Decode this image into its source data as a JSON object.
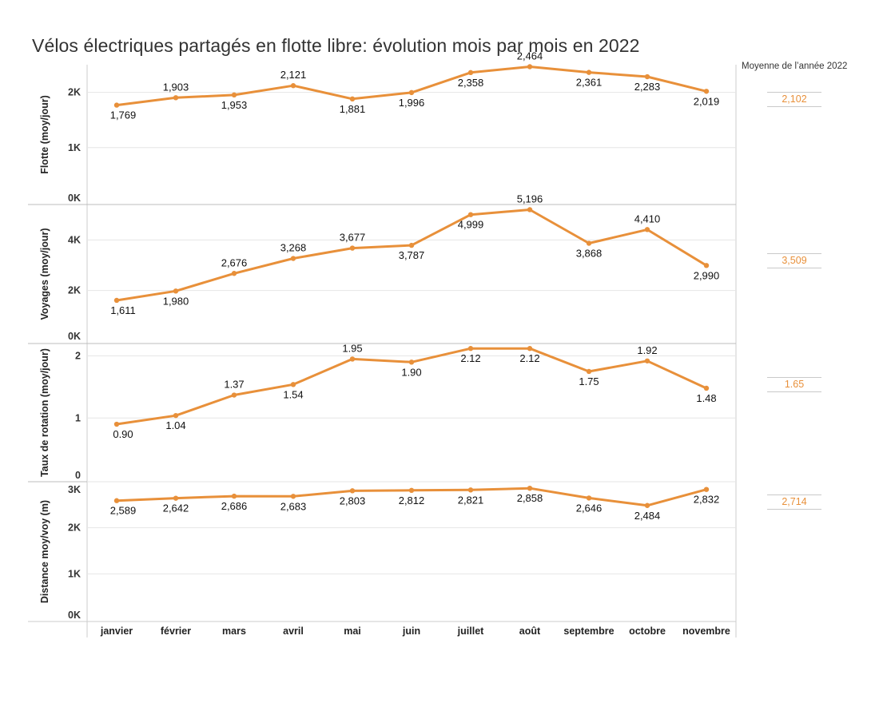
{
  "title": "Vélos électriques partagés en flotte libre: évolution mois par mois en 2022",
  "average_header": "Moyenne de l’année 2022",
  "colors": {
    "line": "#e8903a",
    "avg_text": "#e8903a",
    "grid": "#e6e6e6",
    "axis": "#cccccc"
  },
  "chart_data": {
    "type": "line",
    "categories": [
      "janvier",
      "février",
      "mars",
      "avril",
      "mai",
      "juin",
      "juillet",
      "août",
      "septembre",
      "octobre",
      "novembre"
    ],
    "panels": [
      {
        "name": "flotte",
        "ylabel": "Flotte (moy/jour)",
        "ylim": [
          0,
          2500
        ],
        "ticks": [
          {
            "v": 0,
            "t": "0K"
          },
          {
            "v": 1000,
            "t": "1K"
          },
          {
            "v": 2000,
            "t": "2K"
          }
        ],
        "values": [
          1769,
          1903,
          1953,
          2121,
          1881,
          1996,
          2358,
          2464,
          2361,
          2283,
          2019
        ],
        "labels": [
          "1,769",
          "1,903",
          "1,953",
          "2,121",
          "1,881",
          "1,996",
          "2,358",
          "2,464",
          "2,361",
          "2,283",
          "2,019"
        ],
        "label_pos": [
          "below",
          "above",
          "below",
          "above",
          "below",
          "below",
          "below",
          "above",
          "below",
          "below",
          "below"
        ],
        "average": "2,102"
      },
      {
        "name": "voyages",
        "ylabel": "Voyages (moy/jour)",
        "ylim": [
          0,
          5400
        ],
        "ticks": [
          {
            "v": 0,
            "t": "0K"
          },
          {
            "v": 2000,
            "t": "2K"
          },
          {
            "v": 4000,
            "t": "4K"
          }
        ],
        "values": [
          1611,
          1980,
          2676,
          3268,
          3677,
          3787,
          4999,
          5196,
          3868,
          4410,
          2990
        ],
        "labels": [
          "1,611",
          "1,980",
          "2,676",
          "3,268",
          "3,677",
          "3,787",
          "4,999",
          "5,196",
          "3,868",
          "4,410",
          "2,990"
        ],
        "label_pos": [
          "below",
          "below",
          "above",
          "above",
          "above",
          "below",
          "below",
          "above",
          "below",
          "above",
          "below"
        ],
        "average": "3,509"
      },
      {
        "name": "rotation",
        "ylabel": "Taux de rotation (moy/jour)",
        "ylim": [
          0,
          2.2
        ],
        "ticks": [
          {
            "v": 0,
            "t": "0"
          },
          {
            "v": 1,
            "t": "1"
          },
          {
            "v": 2,
            "t": "2"
          }
        ],
        "values": [
          0.9,
          1.04,
          1.37,
          1.54,
          1.95,
          1.9,
          2.12,
          2.12,
          1.75,
          1.92,
          1.48
        ],
        "labels": [
          "0.90",
          "1.04",
          "1.37",
          "1.54",
          "1.95",
          "1.90",
          "2.12",
          "2.12",
          "1.75",
          "1.92",
          "1.48"
        ],
        "label_pos": [
          "below",
          "below",
          "above",
          "below",
          "above",
          "below",
          "below",
          "below",
          "below",
          "above",
          "below"
        ],
        "average": "1.65"
      },
      {
        "name": "distance",
        "ylabel": "Distance moy/voy (m)",
        "ylim": [
          0,
          3000
        ],
        "ticks": [
          {
            "v": 0,
            "t": "0K"
          },
          {
            "v": 1000,
            "t": "1K"
          },
          {
            "v": 2000,
            "t": "2K"
          },
          {
            "v": 3000,
            "t": "3K"
          }
        ],
        "values": [
          2589,
          2642,
          2686,
          2683,
          2803,
          2812,
          2821,
          2858,
          2646,
          2484,
          2832
        ],
        "labels": [
          "2,589",
          "2,642",
          "2,686",
          "2,683",
          "2,803",
          "2,812",
          "2,821",
          "2,858",
          "2,646",
          "2,484",
          "2,832"
        ],
        "label_pos": [
          "below",
          "below",
          "below",
          "below",
          "below",
          "below",
          "below",
          "below",
          "below",
          "below",
          "below"
        ],
        "average": "2,714"
      }
    ]
  }
}
